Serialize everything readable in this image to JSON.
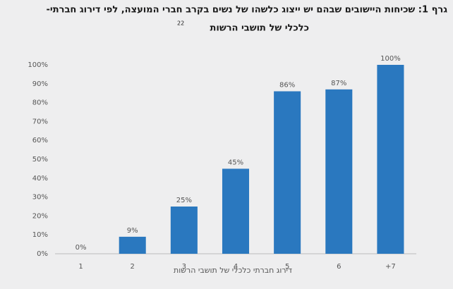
{
  "chart_data": {
    "type": "bar",
    "title_lines": [
      "גרף 1: שכיחות היישובים שבהם יש ייצוג כלשהו של נשים בקרב חברי המועצה, לפי דירוג חברתי-",
      "כלכלי של תושבי הרשות"
    ],
    "title_note": "22",
    "xlabel": "דירוג חברתי כלכלי של תושבי הרשות",
    "categories": [
      "1",
      "2",
      "3",
      "4",
      "5",
      "6",
      "+7"
    ],
    "values": [
      0,
      9,
      25,
      45,
      86,
      87,
      100
    ],
    "value_labels": [
      "0%",
      "9%",
      "25%",
      "45%",
      "86%",
      "87%",
      "100%"
    ],
    "color": "#2a78bf",
    "ylim": [
      0,
      100
    ],
    "yticks": [
      {
        "value": 0,
        "label": "0%"
      },
      {
        "value": 10,
        "label": "10%"
      },
      {
        "value": 20,
        "label": "20%"
      },
      {
        "value": 30,
        "label": "30%"
      },
      {
        "value": 40,
        "label": "40%"
      },
      {
        "value": 50,
        "label": "50%"
      },
      {
        "value": 60,
        "label": "60%"
      },
      {
        "value": 70,
        "label": "70%"
      },
      {
        "value": 80,
        "label": "80%"
      },
      {
        "value": 90,
        "label": "90%"
      },
      {
        "value": 100,
        "label": "100%"
      }
    ],
    "grid": false
  }
}
